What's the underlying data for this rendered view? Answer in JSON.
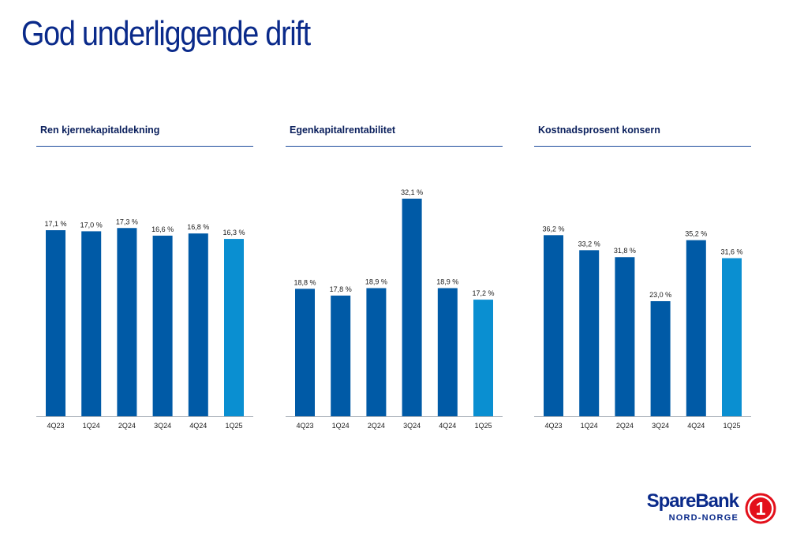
{
  "page": {
    "title": "God underliggende drift"
  },
  "chart_data": [
    {
      "type": "bar",
      "title": "Ren kjernekapitaldekning",
      "categories": [
        "4Q23",
        "1Q24",
        "2Q24",
        "3Q24",
        "4Q24",
        "1Q25"
      ],
      "values": [
        17.1,
        17.0,
        17.3,
        16.6,
        16.8,
        16.3
      ],
      "labels": [
        "17,1 %",
        "17,0 %",
        "17,3 %",
        "16,6 %",
        "16,8 %",
        "16,3 %"
      ],
      "ylim": [
        0,
        20
      ],
      "bar_colors": [
        "#005aa6",
        "#005aa6",
        "#005aa6",
        "#005aa6",
        "#005aa6",
        "#0a8fd1"
      ]
    },
    {
      "type": "bar",
      "title": "Egenkapitalrentabilitet",
      "categories": [
        "4Q23",
        "1Q24",
        "2Q24",
        "3Q24",
        "4Q24",
        "1Q25"
      ],
      "values": [
        18.8,
        17.8,
        18.9,
        32.1,
        18.9,
        17.2
      ],
      "labels": [
        "18,8 %",
        "17,8 %",
        "18,9 %",
        "32,1 %",
        "18,9 %",
        "17,2 %"
      ],
      "ylim": [
        0,
        32.1
      ],
      "bar_colors": [
        "#005aa6",
        "#005aa6",
        "#005aa6",
        "#005aa6",
        "#005aa6",
        "#0a8fd1"
      ]
    },
    {
      "type": "bar",
      "title": "Kostnadsprosent konsern",
      "categories": [
        "4Q23",
        "1Q24",
        "2Q24",
        "3Q24",
        "4Q24",
        "1Q25"
      ],
      "values": [
        36.2,
        33.2,
        31.8,
        23.0,
        35.2,
        31.6
      ],
      "labels": [
        "36,2 %",
        "33,2 %",
        "31,8 %",
        "23,0 %",
        "35,2 %",
        "31,6 %"
      ],
      "ylim": [
        0,
        43.5
      ],
      "bar_colors": [
        "#005aa6",
        "#005aa6",
        "#005aa6",
        "#005aa6",
        "#005aa6",
        "#0a8fd1"
      ]
    }
  ],
  "logo": {
    "name": "SpareBank",
    "sub": "NORD-NORGE",
    "mark": "1",
    "color": "#0a2a8a",
    "mark_color": "#e3101b"
  },
  "colors": {
    "accent": "#005aa6",
    "highlight": "#0a8fd1",
    "title": "#0a2a8a"
  }
}
